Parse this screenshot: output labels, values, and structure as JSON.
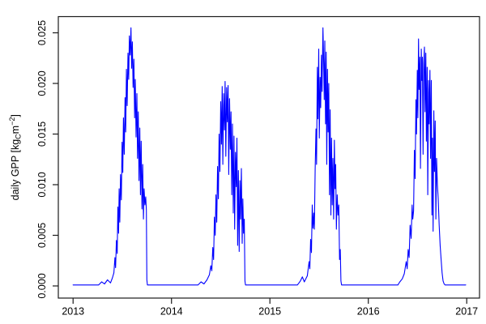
{
  "figure": {
    "background": "#ffffff",
    "axis_color": "#1a1a1a",
    "text_color": "#000000"
  },
  "chart_data": {
    "type": "line",
    "title": "",
    "xlabel": "",
    "ylabel": {
      "text": "daily GPP [kgC m-2]",
      "parts": {
        "prefix": "daily GPP [kg",
        "subscript": "C",
        "mid": "m",
        "superscript": "−2",
        "suffix": "]"
      }
    },
    "grid": false,
    "legend": null,
    "xlim": [
      2012.85,
      2017.13
    ],
    "ylim": [
      -0.0012,
      0.0266
    ],
    "x_ticks": [
      {
        "value": 2013,
        "label": "2013"
      },
      {
        "value": 2014,
        "label": "2014"
      },
      {
        "value": 2015,
        "label": "2015"
      },
      {
        "value": 2016,
        "label": "2016"
      },
      {
        "value": 2017,
        "label": "2017"
      }
    ],
    "y_ticks": [
      {
        "value": 0.0,
        "label": "0.000"
      },
      {
        "value": 0.005,
        "label": "0.005"
      },
      {
        "value": 0.01,
        "label": "0.010"
      },
      {
        "value": 0.015,
        "label": "0.015"
      },
      {
        "value": 0.02,
        "label": "0.020"
      },
      {
        "value": 0.025,
        "label": "0.025"
      }
    ],
    "series": [
      {
        "name": "daily GPP",
        "color": "#0000FF",
        "points": [
          [
            2013.0,
            0.0001
          ],
          [
            2013.26,
            0.0001
          ],
          [
            2013.29,
            0.0004
          ],
          [
            2013.32,
            0.0002
          ],
          [
            2013.35,
            0.0006
          ],
          [
            2013.38,
            0.0003
          ],
          [
            2013.4,
            0.0008
          ],
          [
            2013.415,
            0.0013
          ],
          [
            2013.425,
            0.0028
          ],
          [
            2013.432,
            0.0018
          ],
          [
            2013.44,
            0.0045
          ],
          [
            2013.448,
            0.0032
          ],
          [
            2013.455,
            0.0078
          ],
          [
            2013.462,
            0.0052
          ],
          [
            2013.468,
            0.0096
          ],
          [
            2013.475,
            0.0063
          ],
          [
            2013.482,
            0.011
          ],
          [
            2013.49,
            0.0085
          ],
          [
            2013.498,
            0.0142
          ],
          [
            2013.505,
            0.0112
          ],
          [
            2013.512,
            0.0166
          ],
          [
            2013.52,
            0.013
          ],
          [
            2013.528,
            0.0186
          ],
          [
            2013.535,
            0.0152
          ],
          [
            2013.542,
            0.0214
          ],
          [
            2013.55,
            0.0178
          ],
          [
            2013.558,
            0.023
          ],
          [
            2013.565,
            0.0204
          ],
          [
            2013.572,
            0.0247
          ],
          [
            2013.58,
            0.0228
          ],
          [
            2013.588,
            0.0255
          ],
          [
            2013.595,
            0.0215
          ],
          [
            2013.602,
            0.0241
          ],
          [
            2013.61,
            0.0196
          ],
          [
            2013.618,
            0.0224
          ],
          [
            2013.625,
            0.0166
          ],
          [
            2013.632,
            0.0204
          ],
          [
            2013.64,
            0.0147
          ],
          [
            2013.648,
            0.019
          ],
          [
            2013.655,
            0.0126
          ],
          [
            2013.662,
            0.0172
          ],
          [
            2013.67,
            0.0104
          ],
          [
            2013.678,
            0.0156
          ],
          [
            2013.685,
            0.009
          ],
          [
            2013.692,
            0.0143
          ],
          [
            2013.7,
            0.0076
          ],
          [
            2013.708,
            0.012
          ],
          [
            2013.715,
            0.0066
          ],
          [
            2013.722,
            0.0096
          ],
          [
            2013.73,
            0.008
          ],
          [
            2013.738,
            0.0088
          ],
          [
            2013.745,
            0.0075
          ],
          [
            2013.75,
            0.0006
          ],
          [
            2013.755,
            0.0001
          ],
          [
            2014.27,
            0.0001
          ],
          [
            2014.3,
            0.0004
          ],
          [
            2014.33,
            0.0002
          ],
          [
            2014.36,
            0.0006
          ],
          [
            2014.385,
            0.0011
          ],
          [
            2014.4,
            0.002
          ],
          [
            2014.41,
            0.0015
          ],
          [
            2014.42,
            0.0038
          ],
          [
            2014.428,
            0.0026
          ],
          [
            2014.436,
            0.0068
          ],
          [
            2014.444,
            0.005
          ],
          [
            2014.452,
            0.009
          ],
          [
            2014.46,
            0.0063
          ],
          [
            2014.468,
            0.0118
          ],
          [
            2014.476,
            0.0086
          ],
          [
            2014.484,
            0.015
          ],
          [
            2014.492,
            0.0113
          ],
          [
            2014.5,
            0.0182
          ],
          [
            2014.508,
            0.014
          ],
          [
            2014.515,
            0.0197
          ],
          [
            2014.522,
            0.012
          ],
          [
            2014.53,
            0.019
          ],
          [
            2014.538,
            0.0154
          ],
          [
            2014.545,
            0.0202
          ],
          [
            2014.552,
            0.0128
          ],
          [
            2014.56,
            0.0196
          ],
          [
            2014.568,
            0.0162
          ],
          [
            2014.575,
            0.0198
          ],
          [
            2014.582,
            0.011
          ],
          [
            2014.59,
            0.0185
          ],
          [
            2014.598,
            0.0135
          ],
          [
            2014.605,
            0.0172
          ],
          [
            2014.612,
            0.009
          ],
          [
            2014.62,
            0.016
          ],
          [
            2014.628,
            0.0072
          ],
          [
            2014.635,
            0.0148
          ],
          [
            2014.642,
            0.0056
          ],
          [
            2014.65,
            0.0132
          ],
          [
            2014.658,
            0.0098
          ],
          [
            2014.665,
            0.0146
          ],
          [
            2014.672,
            0.004
          ],
          [
            2014.68,
            0.0114
          ],
          [
            2014.688,
            0.0034
          ],
          [
            2014.695,
            0.0104
          ],
          [
            2014.702,
            0.0066
          ],
          [
            2014.71,
            0.0116
          ],
          [
            2014.718,
            0.0042
          ],
          [
            2014.725,
            0.0086
          ],
          [
            2014.732,
            0.0052
          ],
          [
            2014.74,
            0.0066
          ],
          [
            2014.746,
            0.0005
          ],
          [
            2014.752,
            0.0001
          ],
          [
            2015.28,
            0.0001
          ],
          [
            2015.31,
            0.0005
          ],
          [
            2015.33,
            0.0009
          ],
          [
            2015.35,
            0.0004
          ],
          [
            2015.38,
            0.001
          ],
          [
            2015.398,
            0.0024
          ],
          [
            2015.406,
            0.0017
          ],
          [
            2015.414,
            0.0046
          ],
          [
            2015.422,
            0.0033
          ],
          [
            2015.43,
            0.008
          ],
          [
            2015.438,
            0.0057
          ],
          [
            2015.446,
            0.0072
          ],
          [
            2015.452,
            0.0056
          ],
          [
            2015.46,
            0.0116
          ],
          [
            2015.468,
            0.0155
          ],
          [
            2015.474,
            0.012
          ],
          [
            2015.482,
            0.0216
          ],
          [
            2015.488,
            0.0165
          ],
          [
            2015.496,
            0.0234
          ],
          [
            2015.502,
            0.0146
          ],
          [
            2015.51,
            0.0206
          ],
          [
            2015.516,
            0.0176
          ],
          [
            2015.524,
            0.0228
          ],
          [
            2015.53,
            0.0192
          ],
          [
            2015.539,
            0.0255
          ],
          [
            2015.546,
            0.022
          ],
          [
            2015.552,
            0.0184
          ],
          [
            2015.558,
            0.0242
          ],
          [
            2015.565,
            0.016
          ],
          [
            2015.572,
            0.0231
          ],
          [
            2015.578,
            0.012
          ],
          [
            2015.585,
            0.0214
          ],
          [
            2015.592,
            0.0152
          ],
          [
            2015.598,
            0.02
          ],
          [
            2015.606,
            0.009
          ],
          [
            2015.612,
            0.0174
          ],
          [
            2015.62,
            0.007
          ],
          [
            2015.626,
            0.0146
          ],
          [
            2015.634,
            0.008
          ],
          [
            2015.64,
            0.0126
          ],
          [
            2015.648,
            0.0066
          ],
          [
            2015.655,
            0.0144
          ],
          [
            2015.662,
            0.0096
          ],
          [
            2015.668,
            0.012
          ],
          [
            2015.676,
            0.0056
          ],
          [
            2015.684,
            0.009
          ],
          [
            2015.692,
            0.007
          ],
          [
            2015.7,
            0.008
          ],
          [
            2015.708,
            0.0026
          ],
          [
            2015.715,
            0.0036
          ],
          [
            2015.722,
            0.0005
          ],
          [
            2015.728,
            0.0001
          ],
          [
            2016.3,
            0.0001
          ],
          [
            2016.32,
            0.0004
          ],
          [
            2016.345,
            0.0007
          ],
          [
            2016.365,
            0.0012
          ],
          [
            2016.385,
            0.0024
          ],
          [
            2016.395,
            0.0017
          ],
          [
            2016.405,
            0.0036
          ],
          [
            2016.415,
            0.0028
          ],
          [
            2016.425,
            0.006
          ],
          [
            2016.435,
            0.0047
          ],
          [
            2016.445,
            0.008
          ],
          [
            2016.452,
            0.0066
          ],
          [
            2016.46,
            0.0074
          ],
          [
            2016.468,
            0.0134
          ],
          [
            2016.476,
            0.0106
          ],
          [
            2016.484,
            0.0184
          ],
          [
            2016.49,
            0.015
          ],
          [
            2016.498,
            0.0213
          ],
          [
            2016.504,
            0.0166
          ],
          [
            2016.51,
            0.0244
          ],
          [
            2016.516,
            0.0194
          ],
          [
            2016.524,
            0.0226
          ],
          [
            2016.53,
            0.0116
          ],
          [
            2016.538,
            0.0234
          ],
          [
            2016.544,
            0.0203
          ],
          [
            2016.55,
            0.0226
          ],
          [
            2016.556,
            0.013
          ],
          [
            2016.564,
            0.022
          ],
          [
            2016.57,
            0.0236
          ],
          [
            2016.576,
            0.0172
          ],
          [
            2016.584,
            0.023
          ],
          [
            2016.59,
            0.0143
          ],
          [
            2016.598,
            0.0216
          ],
          [
            2016.604,
            0.009
          ],
          [
            2016.612,
            0.0203
          ],
          [
            2016.618,
            0.016
          ],
          [
            2016.626,
            0.0213
          ],
          [
            2016.632,
            0.0126
          ],
          [
            2016.64,
            0.0203
          ],
          [
            2016.646,
            0.007
          ],
          [
            2016.652,
            0.0146
          ],
          [
            2016.658,
            0.0054
          ],
          [
            2016.666,
            0.0173
          ],
          [
            2016.672,
            0.0113
          ],
          [
            2016.68,
            0.0163
          ],
          [
            2016.686,
            0.0066
          ],
          [
            2016.694,
            0.0126
          ],
          [
            2016.702,
            0.01
          ],
          [
            2016.71,
            0.0086
          ],
          [
            2016.72,
            0.006
          ],
          [
            2016.73,
            0.004
          ],
          [
            2016.74,
            0.0026
          ],
          [
            2016.75,
            0.0013
          ],
          [
            2016.76,
            0.0005
          ],
          [
            2016.77,
            0.0002
          ],
          [
            2016.78,
            0.0001
          ],
          [
            2016.99,
            0.0001
          ]
        ]
      }
    ]
  }
}
